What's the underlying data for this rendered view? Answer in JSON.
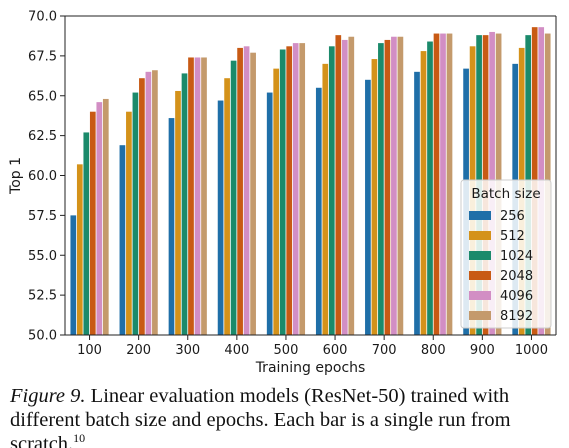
{
  "chart_data": {
    "type": "bar",
    "title": "",
    "xlabel": "Training epochs",
    "ylabel": "Top 1",
    "ylim": [
      50.0,
      70.0
    ],
    "yticks": [
      "50.0",
      "52.5",
      "55.0",
      "57.5",
      "60.0",
      "62.5",
      "65.0",
      "67.5",
      "70.0"
    ],
    "categories": [
      "100",
      "200",
      "300",
      "400",
      "500",
      "600",
      "700",
      "800",
      "900",
      "1000"
    ],
    "legend_title": "Batch size",
    "legend_position": "lower-right",
    "grid": false,
    "series": [
      {
        "name": "256",
        "color": "#1f6fa8",
        "values": [
          57.5,
          61.9,
          63.6,
          64.7,
          65.2,
          65.5,
          66.0,
          66.5,
          66.7,
          67.0
        ]
      },
      {
        "name": "512",
        "color": "#d4921a",
        "values": [
          60.7,
          64.0,
          65.3,
          66.1,
          66.7,
          67.0,
          67.3,
          67.8,
          68.1,
          68.0
        ]
      },
      {
        "name": "1024",
        "color": "#1b8a6b",
        "values": [
          62.7,
          65.2,
          66.4,
          67.2,
          67.9,
          68.1,
          68.3,
          68.4,
          68.8,
          68.8
        ]
      },
      {
        "name": "2048",
        "color": "#c85a14",
        "values": [
          64.0,
          66.1,
          67.4,
          68.0,
          68.1,
          68.8,
          68.5,
          68.9,
          68.8,
          69.3
        ]
      },
      {
        "name": "4096",
        "color": "#d28ec4",
        "values": [
          64.6,
          66.5,
          67.4,
          68.1,
          68.3,
          68.5,
          68.7,
          68.9,
          69.0,
          69.3
        ]
      },
      {
        "name": "8192",
        "color": "#c49a6c",
        "values": [
          64.8,
          66.6,
          67.4,
          67.7,
          68.3,
          68.7,
          68.7,
          68.9,
          68.9,
          68.9
        ]
      }
    ]
  },
  "caption": {
    "figure_label": "Figure 9.",
    "text": " Linear evaluation models (ResNet-50) trained with different batch size and epochs. Each bar is a single run from scratch.",
    "footnote": "10"
  }
}
